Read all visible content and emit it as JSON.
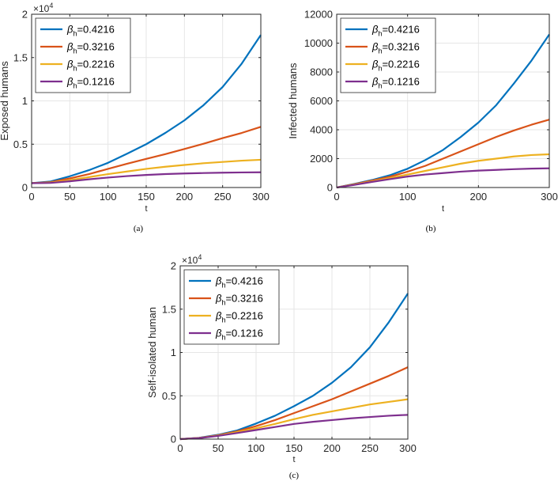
{
  "colors": {
    "series": [
      "#0072BD",
      "#D95319",
      "#EDB120",
      "#7E2F8E"
    ],
    "axis": "#262626",
    "grid": "#e6e6e6"
  },
  "legend_symbol": "β",
  "legend_subscript": "h",
  "chart_data": [
    {
      "type": "line",
      "panel": "a",
      "caption": "(a)",
      "xlabel": "t",
      "ylabel": "Exposed humans",
      "xlim": [
        0,
        300
      ],
      "ylim": [
        0,
        20000
      ],
      "xticks": [
        0,
        50,
        100,
        150,
        200,
        250,
        300
      ],
      "yticks": [
        0,
        5000,
        10000,
        15000,
        20000
      ],
      "ytick_labels": [
        "0",
        "0.5",
        "1",
        "1.5",
        "2"
      ],
      "exponent_base": "×10",
      "exponent_power": "4",
      "x": [
        0,
        25,
        50,
        75,
        100,
        125,
        150,
        175,
        200,
        225,
        250,
        275,
        300
      ],
      "series": [
        {
          "name": "=0.4216",
          "values": [
            500,
            700,
            1300,
            2000,
            2850,
            3900,
            5000,
            6300,
            7750,
            9500,
            11600,
            14300,
            17600
          ]
        },
        {
          "name": "=0.3216",
          "values": [
            500,
            620,
            1050,
            1550,
            2150,
            2750,
            3300,
            3850,
            4450,
            5050,
            5700,
            6300,
            7000
          ]
        },
        {
          "name": "=0.2216",
          "values": [
            500,
            560,
            850,
            1200,
            1550,
            1850,
            2150,
            2400,
            2600,
            2800,
            2950,
            3100,
            3200
          ]
        },
        {
          "name": "=0.1216",
          "values": [
            500,
            530,
            720,
            950,
            1150,
            1320,
            1450,
            1550,
            1620,
            1670,
            1710,
            1740,
            1760
          ]
        }
      ]
    },
    {
      "type": "line",
      "panel": "b",
      "caption": "(b)",
      "xlabel": "t",
      "ylabel": "Infected humans",
      "xlim": [
        0,
        300
      ],
      "ylim": [
        0,
        12000
      ],
      "xticks": [
        0,
        100,
        200,
        300
      ],
      "yticks": [
        0,
        2000,
        4000,
        6000,
        8000,
        10000,
        12000
      ],
      "ytick_labels": [
        "0",
        "2000",
        "4000",
        "6000",
        "8000",
        "10000",
        "12000"
      ],
      "x": [
        0,
        25,
        50,
        75,
        100,
        125,
        150,
        175,
        200,
        225,
        250,
        275,
        300
      ],
      "series": [
        {
          "name": "=0.4216",
          "values": [
            0,
            250,
            520,
            850,
            1300,
            1900,
            2600,
            3500,
            4500,
            5700,
            7200,
            8800,
            10600
          ]
        },
        {
          "name": "=0.3216",
          "values": [
            0,
            230,
            480,
            750,
            1100,
            1500,
            2000,
            2500,
            3000,
            3500,
            3950,
            4350,
            4700
          ]
        },
        {
          "name": "=0.2216",
          "values": [
            0,
            200,
            430,
            650,
            900,
            1150,
            1400,
            1650,
            1850,
            2000,
            2150,
            2250,
            2300
          ]
        },
        {
          "name": "=0.1216",
          "values": [
            0,
            180,
            390,
            580,
            760,
            900,
            1000,
            1100,
            1170,
            1220,
            1270,
            1310,
            1330
          ]
        }
      ]
    },
    {
      "type": "line",
      "panel": "c",
      "caption": "(c)",
      "xlabel": "t",
      "ylabel": "Self-isolated human",
      "xlim": [
        0,
        300
      ],
      "ylim": [
        0,
        20000
      ],
      "xticks": [
        0,
        50,
        100,
        150,
        200,
        250,
        300
      ],
      "yticks": [
        0,
        5000,
        10000,
        15000,
        20000
      ],
      "ytick_labels": [
        "0",
        "0.5",
        "1",
        "1.5",
        "2"
      ],
      "exponent_base": "×10",
      "exponent_power": "4",
      "x": [
        0,
        25,
        50,
        75,
        100,
        125,
        150,
        175,
        200,
        225,
        250,
        275,
        300
      ],
      "series": [
        {
          "name": "=0.4216",
          "values": [
            0,
            150,
            500,
            1000,
            1800,
            2700,
            3800,
            5000,
            6500,
            8300,
            10600,
            13500,
            16800
          ]
        },
        {
          "name": "=0.3216",
          "values": [
            0,
            140,
            450,
            900,
            1500,
            2200,
            3000,
            3800,
            4600,
            5500,
            6400,
            7300,
            8300
          ]
        },
        {
          "name": "=0.2216",
          "values": [
            0,
            130,
            400,
            800,
            1250,
            1750,
            2300,
            2800,
            3200,
            3600,
            4000,
            4300,
            4600
          ]
        },
        {
          "name": "=0.1216",
          "values": [
            0,
            120,
            370,
            700,
            1050,
            1400,
            1750,
            2000,
            2200,
            2400,
            2550,
            2700,
            2800
          ]
        }
      ]
    }
  ]
}
